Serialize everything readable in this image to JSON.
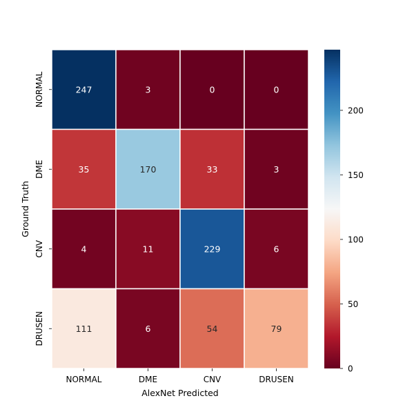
{
  "chart_data": {
    "type": "heatmap",
    "title": "",
    "xlabel": "AlexNet Predicted",
    "ylabel": "Ground Truth",
    "x_categories": [
      "NORMAL",
      "DME",
      "CNV",
      "DRUSEN"
    ],
    "y_categories": [
      "NORMAL",
      "DME",
      "CNV",
      "DRUSEN"
    ],
    "values": [
      [
        247,
        3,
        0,
        0
      ],
      [
        35,
        170,
        33,
        3
      ],
      [
        4,
        11,
        229,
        6
      ],
      [
        111,
        6,
        54,
        79
      ]
    ],
    "colorbar": {
      "colormap": "RdBu",
      "vmin": 0,
      "vmax": 247,
      "ticks": [
        0,
        50,
        100,
        150,
        200
      ]
    }
  }
}
